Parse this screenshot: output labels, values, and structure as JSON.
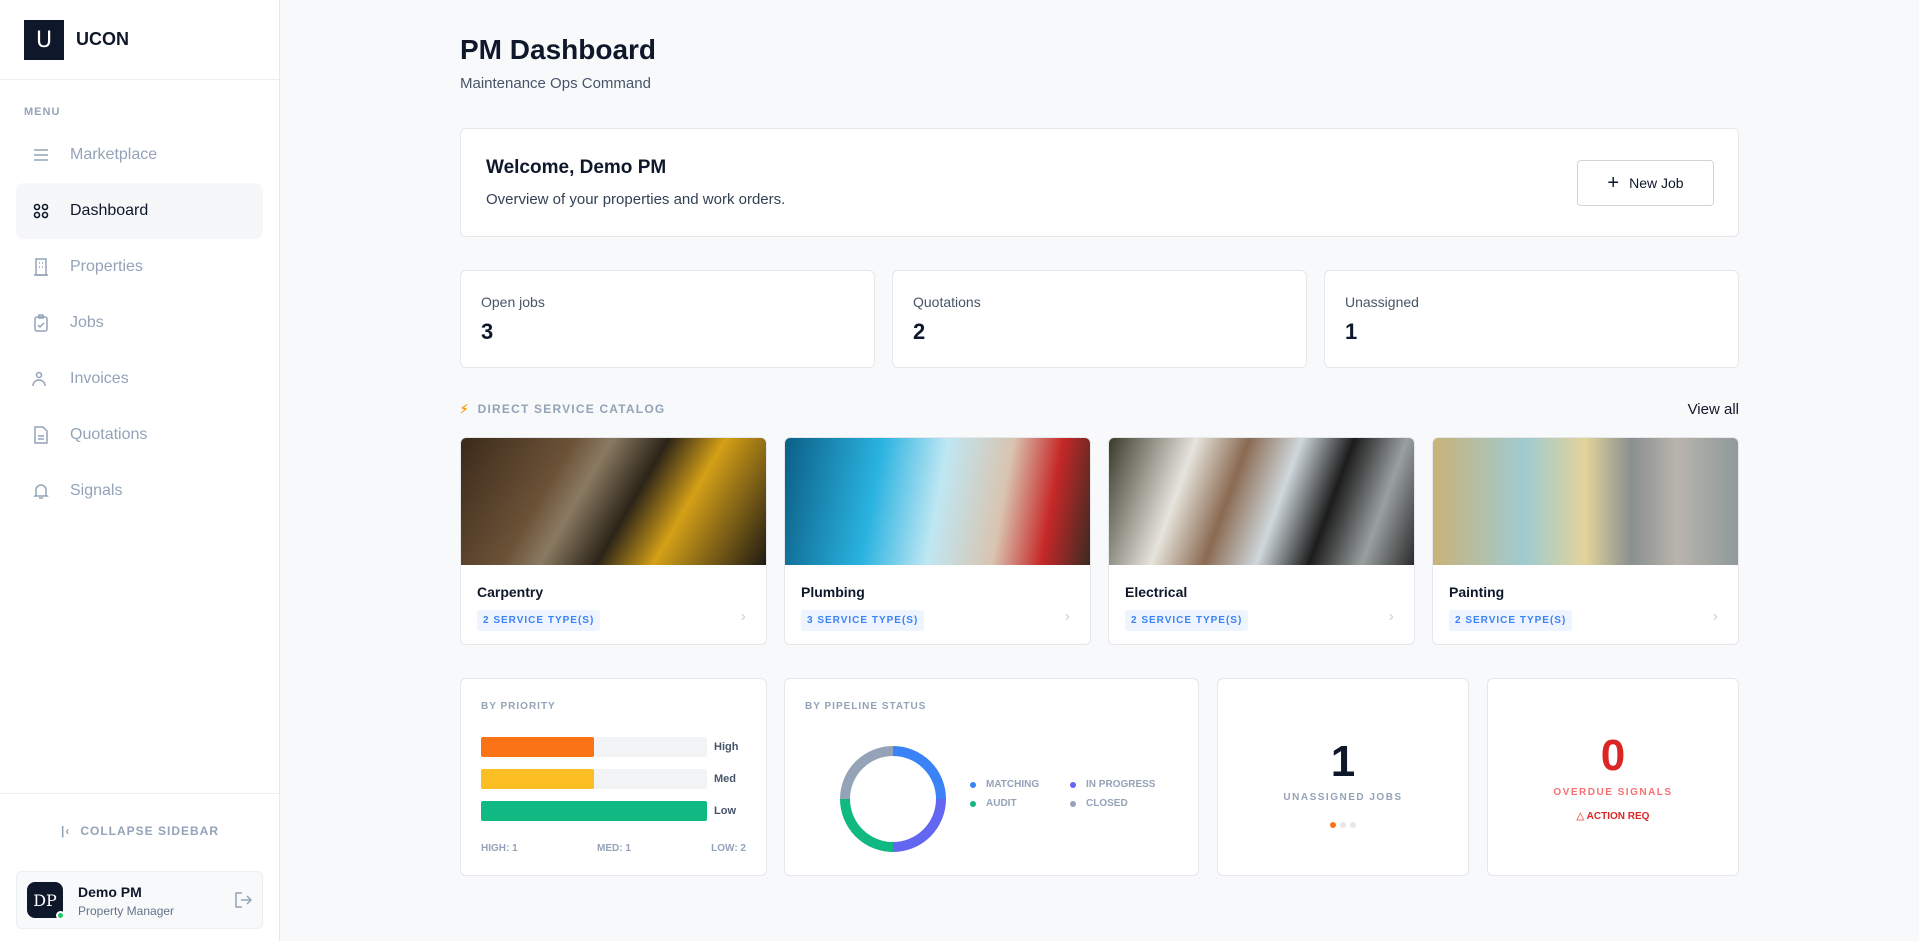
{
  "sidebar": {
    "brand_initial": "U",
    "brand": "UCON",
    "menu_label": "MENU",
    "items": [
      {
        "label": "Marketplace",
        "icon": "menu-icon"
      },
      {
        "label": "Dashboard",
        "icon": "grid-icon",
        "active": true
      },
      {
        "label": "Properties",
        "icon": "building-icon"
      },
      {
        "label": "Jobs",
        "icon": "clipboard-check-icon"
      },
      {
        "label": "Invoices",
        "icon": "user-icon"
      },
      {
        "label": "Quotations",
        "icon": "file-icon"
      },
      {
        "label": "Signals",
        "icon": "bell-icon"
      }
    ],
    "collapse_label": "COLLAPSE SIDEBAR",
    "user": {
      "initials": "DP",
      "name": "Demo PM",
      "role": "Property Manager",
      "status": "online"
    }
  },
  "header": {
    "title": "PM Dashboard",
    "subtitle": "Maintenance Ops Command"
  },
  "welcome": {
    "title": "Welcome, Demo PM",
    "text": "Overview of your properties and work orders.",
    "new_job_label": "New Job"
  },
  "stats": [
    {
      "label": "Open jobs",
      "value": "3"
    },
    {
      "label": "Quotations",
      "value": "2"
    },
    {
      "label": "Unassigned",
      "value": "1"
    }
  ],
  "catalog": {
    "title": "DIRECT SERVICE CATALOG",
    "view_all": "View all",
    "items": [
      {
        "name": "Carpentry",
        "badge": "2 SERVICE TYPE(S)"
      },
      {
        "name": "Plumbing",
        "badge": "3 SERVICE TYPE(S)"
      },
      {
        "name": "Electrical",
        "badge": "2 SERVICE TYPE(S)"
      },
      {
        "name": "Painting",
        "badge": "2 SERVICE TYPE(S)"
      }
    ]
  },
  "priority": {
    "title": "BY PRIORITY",
    "bars": [
      {
        "label": "High",
        "value": 1,
        "color": "#f97316"
      },
      {
        "label": "Med",
        "value": 1,
        "color": "#fbbf24"
      },
      {
        "label": "Low",
        "value": 2,
        "color": "#10b981"
      }
    ],
    "footer": [
      "HIGH: 1",
      "MED: 1",
      "LOW: 2"
    ]
  },
  "pipeline": {
    "title": "BY PIPELINE STATUS",
    "segments": [
      {
        "label": "MATCHING",
        "share": 25,
        "color": "#3b82f6"
      },
      {
        "label": "IN PROGRESS",
        "share": 25,
        "color": "#6366f1"
      },
      {
        "label": "AUDIT",
        "share": 25,
        "color": "#10b981"
      },
      {
        "label": "CLOSED",
        "share": 25,
        "color": "#94a3b8"
      }
    ]
  },
  "unassigned": {
    "value": "1",
    "label": "UNASSIGNED JOBS"
  },
  "overdue": {
    "value": "0",
    "label": "OVERDUE SIGNALS",
    "action": "ACTION REQ",
    "color": "#dc2626"
  }
}
